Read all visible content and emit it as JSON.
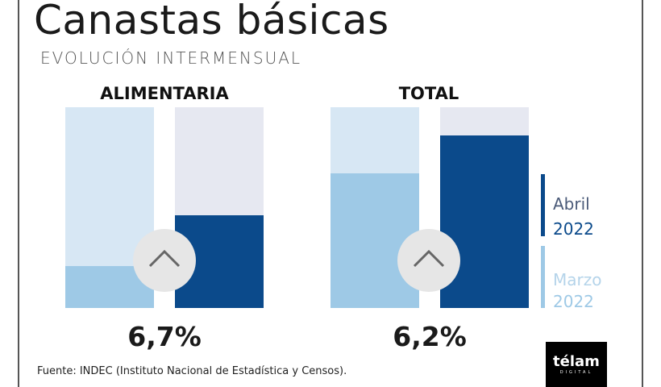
{
  "title": "Canastas básicas",
  "subtitle": "EVOLUCIÓN INTERMENSUAL",
  "colors": {
    "abril": "#0b4a8b",
    "marzo": "#9ec9e6",
    "marzo_bg": "#d7e7f4",
    "abril_bg": "#e6e8f1"
  },
  "chart_data": {
    "type": "bar",
    "title": "Canastas básicas",
    "subtitle": "EVOLUCIÓN INTERMENSUAL",
    "categories": [
      "ALIMENTARIA",
      "TOTAL"
    ],
    "series": [
      {
        "name": "Marzo 2022",
        "fill_fraction": [
          0.21,
          0.67
        ]
      },
      {
        "name": "Abril 2022",
        "fill_fraction": [
          0.46,
          0.86
        ]
      }
    ],
    "change_labels": [
      "6,7%",
      "6,2%"
    ],
    "icon": "chevron-up-icon",
    "legend": [
      {
        "month": "Abril",
        "year": "2022"
      },
      {
        "month": "Marzo",
        "year": "2022"
      }
    ],
    "legend_position": "right"
  },
  "source": "Fuente: INDEC (Instituto Nacional de Estadística y Censos).",
  "logo": {
    "name": "télam",
    "sub": "DIGITAL"
  }
}
